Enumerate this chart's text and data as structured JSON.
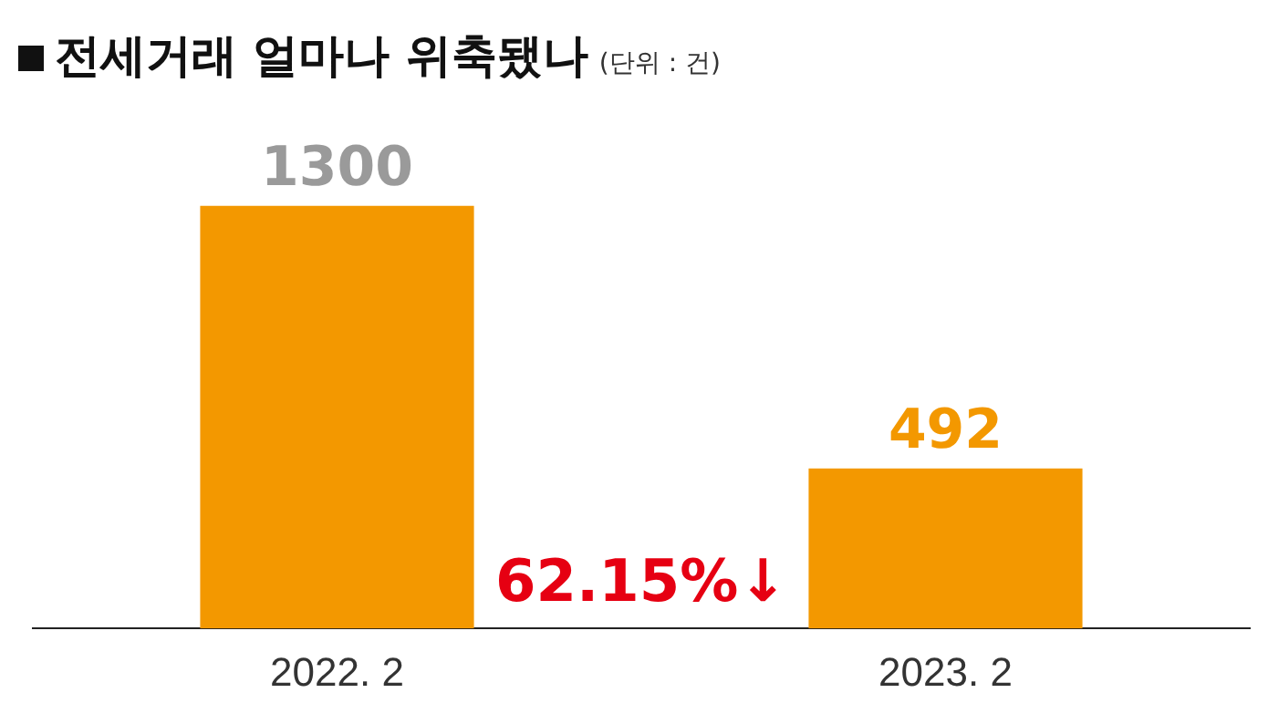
{
  "chart_data": {
    "type": "bar",
    "title": "전세거래 얼마나 위축됐나",
    "subtitle": "(단위 : 건)",
    "categories": [
      "2022. 2",
      "2023. 2"
    ],
    "values": [
      1300,
      492
    ],
    "color": "#f39800",
    "data_labels": true,
    "relative": false,
    "grid": false,
    "legend": false,
    "annotations": [
      "62.15%↓"
    ]
  }
}
